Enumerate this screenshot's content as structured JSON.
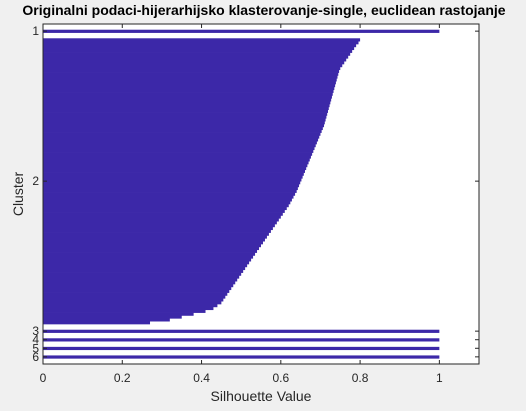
{
  "chart_data": {
    "type": "silhouette",
    "title": "Originalni podaci-hijerarhijsko klasterovanje-single, euclidean rastojanje",
    "xlabel": "Silhouette Value",
    "ylabel": "Cluster",
    "xlim": [
      0,
      1.1
    ],
    "xticks": [
      0,
      0.2,
      0.4,
      0.6,
      0.8,
      1
    ],
    "xtick_labels": [
      "0",
      "0.2",
      "0.4",
      "0.6",
      "0.8",
      "1"
    ],
    "grid": false,
    "bar_color": "#3c28a8",
    "clusters": [
      {
        "label": "1",
        "count": 1,
        "values": [
          1.0
        ]
      },
      {
        "label": "2",
        "count": 100,
        "values": [
          0.8,
          0.796,
          0.79,
          0.785,
          0.78,
          0.775,
          0.77,
          0.765,
          0.76,
          0.755,
          0.75,
          0.747,
          0.745,
          0.743,
          0.741,
          0.739,
          0.737,
          0.735,
          0.733,
          0.731,
          0.729,
          0.727,
          0.725,
          0.723,
          0.721,
          0.719,
          0.717,
          0.715,
          0.713,
          0.711,
          0.709,
          0.706,
          0.703,
          0.7,
          0.697,
          0.694,
          0.691,
          0.688,
          0.685,
          0.682,
          0.679,
          0.676,
          0.673,
          0.67,
          0.667,
          0.664,
          0.661,
          0.658,
          0.655,
          0.652,
          0.649,
          0.646,
          0.643,
          0.64,
          0.636,
          0.632,
          0.628,
          0.624,
          0.62,
          0.615,
          0.61,
          0.605,
          0.6,
          0.595,
          0.59,
          0.585,
          0.58,
          0.575,
          0.57,
          0.565,
          0.56,
          0.555,
          0.55,
          0.545,
          0.54,
          0.535,
          0.53,
          0.525,
          0.52,
          0.515,
          0.51,
          0.505,
          0.5,
          0.495,
          0.49,
          0.485,
          0.48,
          0.475,
          0.47,
          0.465,
          0.46,
          0.455,
          0.45,
          0.44,
          0.43,
          0.41,
          0.38,
          0.35,
          0.32,
          0.27
        ]
      },
      {
        "label": "3",
        "count": 1,
        "values": [
          1.0
        ]
      },
      {
        "label": "4",
        "count": 1,
        "values": [
          1.0
        ]
      },
      {
        "label": "5",
        "count": 1,
        "values": [
          1.0
        ]
      },
      {
        "label": "6",
        "count": 1,
        "values": [
          1.0
        ]
      }
    ]
  }
}
